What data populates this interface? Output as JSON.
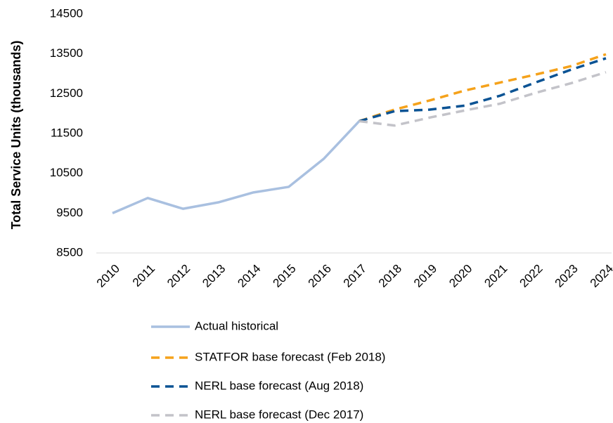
{
  "chart_data": {
    "type": "line",
    "y_axis_label": "Total Service Units (thousands)",
    "categories": [
      "2010",
      "2011",
      "2012",
      "2013",
      "2014",
      "2015",
      "2016",
      "2017",
      "2018",
      "2019",
      "2020",
      "2021",
      "2022",
      "2023",
      "2024"
    ],
    "ylim": [
      8500,
      14500
    ],
    "yticks": [
      8500,
      9500,
      10500,
      11500,
      12500,
      13500,
      14500
    ],
    "grid": false,
    "legend": "bottom",
    "series": [
      {
        "name": "Actual historical",
        "color": "#a9c0e0",
        "dash": "solid",
        "values": [
          9500,
          9880,
          9610,
          9770,
          10020,
          10160,
          10870,
          11810,
          null,
          null,
          null,
          null,
          null,
          null,
          null
        ]
      },
      {
        "name": "STATFOR base forecast (Feb 2018)",
        "color": "#f5a21b",
        "dash": "dashed",
        "values": [
          null,
          null,
          null,
          null,
          null,
          null,
          null,
          11810,
          12100,
          12330,
          12580,
          12780,
          12980,
          13190,
          13490
        ]
      },
      {
        "name": "NERL base forecast (Aug 2018)",
        "color": "#0b5394",
        "dash": "dashed",
        "values": [
          null,
          null,
          null,
          null,
          null,
          null,
          null,
          11810,
          12060,
          12100,
          12200,
          12450,
          12780,
          13100,
          13390
        ]
      },
      {
        "name": "NERL base forecast (Dec 2017)",
        "color": "#c3c3c9",
        "dash": "dashed",
        "values": [
          null,
          null,
          null,
          null,
          null,
          null,
          null,
          11810,
          11700,
          11900,
          12080,
          12250,
          12520,
          12760,
          13040
        ]
      }
    ]
  }
}
